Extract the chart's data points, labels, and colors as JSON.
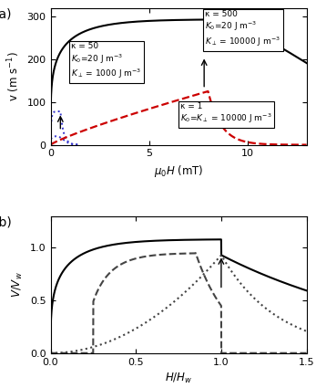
{
  "panel_a": {
    "xlabel": "$\\mu_0H$ (mT)",
    "ylabel": "v (m s$^{-1}$)",
    "xlim": [
      0,
      13
    ],
    "ylim": [
      0,
      320
    ],
    "xticks": [
      0,
      5,
      10
    ],
    "yticks": [
      0,
      100,
      200,
      300
    ],
    "label_a": "(a)"
  },
  "panel_b": {
    "xlabel": "$H/H_w$",
    "ylabel": "$V/V_w$",
    "xlim": [
      0.0,
      1.5
    ],
    "ylim": [
      0.0,
      1.3
    ],
    "xticks": [
      0.0,
      0.5,
      1.0,
      1.5
    ],
    "yticks": [
      0.0,
      0.5,
      1.0
    ],
    "label_b": "(b)"
  }
}
